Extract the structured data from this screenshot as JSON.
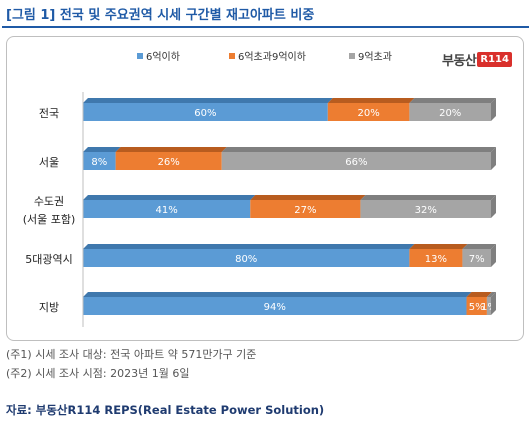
{
  "title": "[그림 1] 전국 및 주요권역 시세 구간별 재고아파트 비중",
  "logo": {
    "text": "부동산",
    "badge": "R114"
  },
  "notes": [
    "(주1) 시세 조사 대상: 전국 아파트 약 571만가구 기준",
    "(주2) 시세 조사 시점: 2023년 1월 6일"
  ],
  "source": "자료: 부동산R114 REPS(Real Estate Power Solution)",
  "colors": {
    "s1": "#5b9bd5",
    "s2": "#ed7d31",
    "s3": "#a5a5a5"
  },
  "chart_data": {
    "type": "bar",
    "orientation": "horizontal",
    "stacked": "percent",
    "legend_position": "top-center",
    "categories": [
      [
        "전국"
      ],
      [
        "서울"
      ],
      [
        "수도권",
        "(서울 포함)"
      ],
      [
        "5대광역시"
      ],
      [
        "지방"
      ]
    ],
    "series": [
      {
        "name": "6억이하",
        "values": [
          60,
          8,
          41,
          80,
          94
        ],
        "labels": [
          "60%",
          "8%",
          "41%",
          "80%",
          "94%"
        ]
      },
      {
        "name": "6억초과9억이하",
        "values": [
          20,
          26,
          27,
          13,
          5
        ],
        "labels": [
          "20%",
          "26%",
          "27%",
          "13%",
          "5%"
        ]
      },
      {
        "name": "9억초과",
        "values": [
          20,
          66,
          32,
          7,
          1
        ],
        "labels": [
          "20%",
          "66%",
          "32%",
          "7%",
          "1%"
        ]
      }
    ]
  }
}
